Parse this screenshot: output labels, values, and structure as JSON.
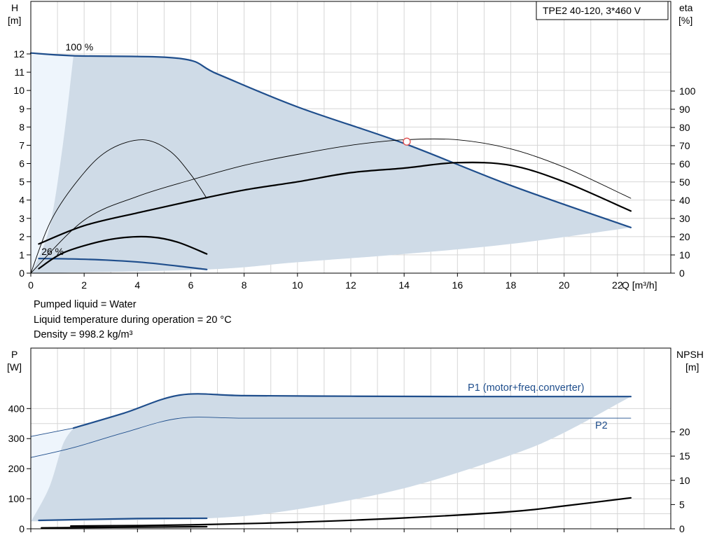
{
  "chart_data": [
    {
      "type": "line",
      "title": "TPE2 40-120, 3*460 V",
      "ylabel": "H",
      "yunit": "[m]",
      "ylabel_right": "eta",
      "yunit_right": "[%]",
      "xlabel": "Q [m³/h]",
      "xlim": [
        0,
        24
      ],
      "ylim": [
        0,
        12
      ],
      "ylim_right": [
        0,
        100
      ],
      "x_ticks": [
        0,
        2,
        4,
        6,
        8,
        10,
        12,
        14,
        16,
        18,
        20,
        22
      ],
      "y_ticks": [
        0,
        1,
        2,
        3,
        4,
        5,
        6,
        7,
        8,
        9,
        10,
        11,
        12
      ],
      "y_right_ticks": [
        0,
        10,
        20,
        30,
        40,
        50,
        60,
        70,
        80,
        90,
        100
      ],
      "grid": true,
      "annotations": [
        {
          "text": "100 %",
          "x": 1.3,
          "y": 12.2
        },
        {
          "text": "26 %",
          "x": 0.4,
          "y": 1.0
        }
      ],
      "duty_point": {
        "x": 14.1,
        "y": 7.2
      },
      "series": [
        {
          "color": "#1f4e8c",
          "x": [
            0,
            1.6,
            5.6,
            7,
            10,
            14,
            18,
            22.5
          ],
          "y": [
            12.05,
            11.9,
            11.75,
            10.9,
            9.1,
            7.1,
            4.8,
            2.5
          ]
        },
        {
          "color": "#1f4e8c",
          "x": [
            0.3,
            1.5,
            3,
            4.5,
            6.6
          ],
          "y": [
            0.8,
            0.78,
            0.7,
            0.55,
            0.2
          ]
        },
        {
          "color": "#000000",
          "x": [
            0.3,
            2,
            4,
            6,
            8,
            10,
            12,
            14,
            16,
            18,
            20,
            22.5
          ],
          "y": [
            1.6,
            2.6,
            3.3,
            3.95,
            4.55,
            5.0,
            5.5,
            5.75,
            6.05,
            5.9,
            5.0,
            3.4
          ]
        },
        {
          "color": "#000000",
          "x": [
            0.3,
            1.2,
            2.5,
            3.5,
            4.5,
            5.5,
            6.6
          ],
          "y": [
            0.25,
            1.1,
            1.7,
            1.95,
            1.98,
            1.7,
            1.05
          ]
        },
        {
          "color": "#000000",
          "x": [
            0,
            0.8,
            2,
            3,
            4.2,
            5.2,
            6.0,
            6.6
          ],
          "y": [
            0,
            3.0,
            5.5,
            6.8,
            7.3,
            6.7,
            5.4,
            4.1
          ]
        },
        {
          "color": "#000000",
          "x": [
            0,
            2,
            4,
            6,
            8,
            10,
            12,
            14,
            16,
            18,
            20,
            22.5
          ],
          "y": [
            0,
            2.9,
            4.2,
            5.1,
            5.9,
            6.5,
            7.0,
            7.3,
            7.3,
            6.8,
            5.8,
            4.1
          ]
        }
      ],
      "operating_range": {
        "upper": {
          "x": [
            0,
            1.6,
            5.6,
            7,
            10,
            14,
            18,
            22.5
          ],
          "y": [
            12.05,
            11.9,
            11.75,
            10.9,
            9.1,
            7.1,
            4.8,
            2.5
          ]
        },
        "lower": {
          "x": [
            0,
            6.6,
            10,
            14,
            18,
            22.5
          ],
          "y": [
            0,
            0.2,
            0.6,
            1.05,
            1.6,
            2.5
          ]
        },
        "min_flow": {
          "x": [
            0.05,
            0.7,
            1.2,
            1.6
          ],
          "y": [
            0.05,
            2.5,
            7.0,
            11.9
          ]
        }
      }
    },
    {
      "type": "line",
      "ylabel": "P",
      "yunit": "[W]",
      "ylabel_right": "NPSH",
      "yunit_right": "[m]",
      "xlim": [
        0,
        24
      ],
      "ylim": [
        0,
        450
      ],
      "ylim_right": [
        0,
        25
      ],
      "y_ticks": [
        0,
        100,
        200,
        300,
        400
      ],
      "y_right_ticks": [
        0,
        5,
        10,
        15,
        20
      ],
      "grid": true,
      "series": [
        {
          "name": "P1 (motor+freq.converter)",
          "color": "#1f4e8c",
          "x": [
            1.6,
            3.5,
            5.6,
            8,
            12,
            16,
            20,
            22.5
          ],
          "y": [
            335,
            385,
            445,
            443,
            441,
            440,
            440,
            440
          ]
        },
        {
          "name": "P2",
          "color": "#1f4e8c",
          "x": [
            0,
            1.6,
            3.5,
            5.6,
            8,
            12,
            16,
            20,
            22.5
          ],
          "y": [
            237,
            270,
            320,
            368,
            368,
            368,
            368,
            368,
            368
          ]
        },
        {
          "color": "#1f4e8c",
          "x": [
            0.3,
            2,
            4,
            6.6
          ],
          "y": [
            28,
            31,
            34,
            35
          ]
        },
        {
          "color": "#1f4e8c",
          "x": [
            0,
            1.6
          ],
          "y": [
            307,
            335
          ]
        },
        {
          "color": "#000000",
          "x": [
            1.5,
            6,
            10,
            14,
            18,
            20,
            22.5
          ],
          "y": [
            9,
            13,
            22,
            36,
            57,
            76,
            103
          ]
        },
        {
          "color": "#000000",
          "x": [
            0.4,
            3,
            6.6
          ],
          "y": [
            3,
            5,
            7
          ]
        }
      ],
      "operating_range": {
        "upper": {
          "x": [
            0,
            1.6,
            3.5,
            5.6,
            8,
            12,
            16,
            20,
            22.5
          ],
          "y": [
            307,
            335,
            385,
            445,
            443,
            441,
            440,
            440,
            440
          ]
        },
        "lower": {
          "x": [
            0,
            6.6,
            10,
            14,
            18,
            20,
            22.5
          ],
          "y": [
            25,
            35,
            65,
            135,
            245,
            320,
            440
          ]
        },
        "min_flow": {
          "x": [
            0.05,
            0.7,
            1.2,
            1.6
          ],
          "y": [
            30,
            140,
            280,
            335
          ]
        }
      }
    }
  ],
  "notes": [
    "Pumped liquid = Water",
    "Liquid temperature during operation = 20 °C",
    "Density = 998.2 kg/m³"
  ]
}
